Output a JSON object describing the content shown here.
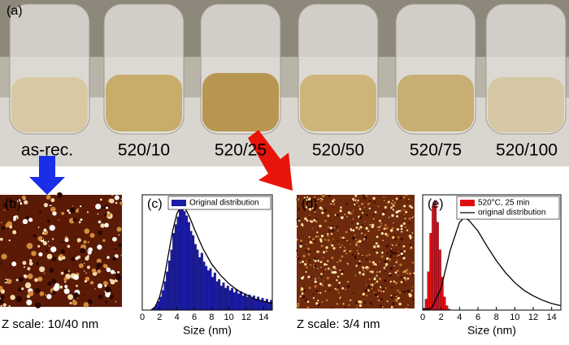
{
  "photo": {
    "label": "(a)",
    "samples": [
      "as-rec.",
      "520/10",
      "520/25",
      "520/50",
      "520/75",
      "520/100"
    ]
  },
  "afm": [
    {
      "label": "(b)",
      "caption": "Z scale: 10/40 nm"
    },
    {
      "label": "(d)",
      "caption": "Z scale: 3/4 nm"
    }
  ],
  "chart_data": [
    {
      "type": "histogram",
      "panel_label": "(c)",
      "xlabel": "Size (nm)",
      "bins": [
        1.0,
        1.25,
        1.5,
        1.75,
        2.0,
        2.25,
        2.5,
        2.75,
        3.0,
        3.25,
        3.5,
        3.75,
        4.0,
        4.25,
        4.5,
        4.75,
        5.0,
        5.25,
        5.5,
        5.75,
        6.0,
        6.25,
        6.5,
        6.75,
        7.0,
        7.25,
        7.5,
        7.75,
        8.0,
        8.25,
        8.5,
        8.75,
        9.0,
        9.25,
        9.5,
        9.75,
        10.0,
        10.25,
        10.5,
        10.75,
        11.0,
        11.25,
        11.5,
        11.75,
        12.0,
        12.25,
        12.5,
        12.75,
        13.0,
        13.25,
        13.5,
        13.75,
        14.0,
        14.25,
        14.5,
        14.75,
        15.0
      ],
      "bars": {
        "name": "Original distribution",
        "color": "#1c1ca8",
        "values": [
          0,
          2,
          5,
          8,
          12,
          18,
          26,
          35,
          45,
          55,
          70,
          78,
          85,
          92,
          100,
          90,
          86,
          80,
          72,
          68,
          60,
          55,
          48,
          52,
          44,
          40,
          36,
          38,
          30,
          34,
          26,
          28,
          22,
          25,
          20,
          22,
          18,
          20,
          16,
          19,
          15,
          17,
          13,
          15,
          12,
          14,
          11,
          13,
          10,
          12,
          9,
          11,
          8,
          10,
          7,
          9
        ]
      },
      "line": {
        "color": "#000000",
        "x": [
          1,
          1.5,
          2,
          2.5,
          3,
          3.5,
          4,
          4.5,
          5,
          5.5,
          6,
          7,
          8,
          9,
          10,
          11,
          12,
          13,
          14,
          15
        ],
        "values": [
          0,
          3,
          12,
          28,
          50,
          72,
          88,
          95,
          92,
          84,
          74,
          56,
          42,
          32,
          24,
          18,
          14,
          10,
          8,
          6
        ]
      },
      "xlim": [
        0,
        15
      ],
      "xticks": [
        0,
        2,
        4,
        6,
        8,
        10,
        12,
        14
      ],
      "ylim": [
        0,
        105
      ],
      "legend": "upper right"
    },
    {
      "type": "histogram",
      "panel_label": "(e)",
      "xlabel": "Size (nm)",
      "bins": [
        0,
        0.25,
        0.5,
        0.75,
        1.0,
        1.25,
        1.5,
        1.75,
        2.0,
        2.25,
        2.5,
        2.75,
        3.0
      ],
      "bars": {
        "name": "520°C, 25 min",
        "color": "#e01010",
        "values": [
          2,
          10,
          35,
          70,
          95,
          100,
          80,
          55,
          30,
          12,
          4,
          1
        ]
      },
      "line": {
        "name": "original distribution",
        "color": "#000000",
        "x": [
          0,
          1,
          2,
          3,
          4,
          4.5,
          5,
          6,
          7,
          8,
          9,
          10,
          11,
          12,
          13,
          14,
          15
        ],
        "values": [
          0,
          2,
          20,
          55,
          80,
          84,
          82,
          72,
          58,
          45,
          34,
          25,
          18,
          13,
          9,
          6,
          4
        ]
      },
      "xlim": [
        0,
        15
      ],
      "xticks": [
        0,
        2,
        4,
        6,
        8,
        10,
        12,
        14
      ],
      "ylim": [
        0,
        105
      ],
      "legend": "upper right"
    }
  ]
}
